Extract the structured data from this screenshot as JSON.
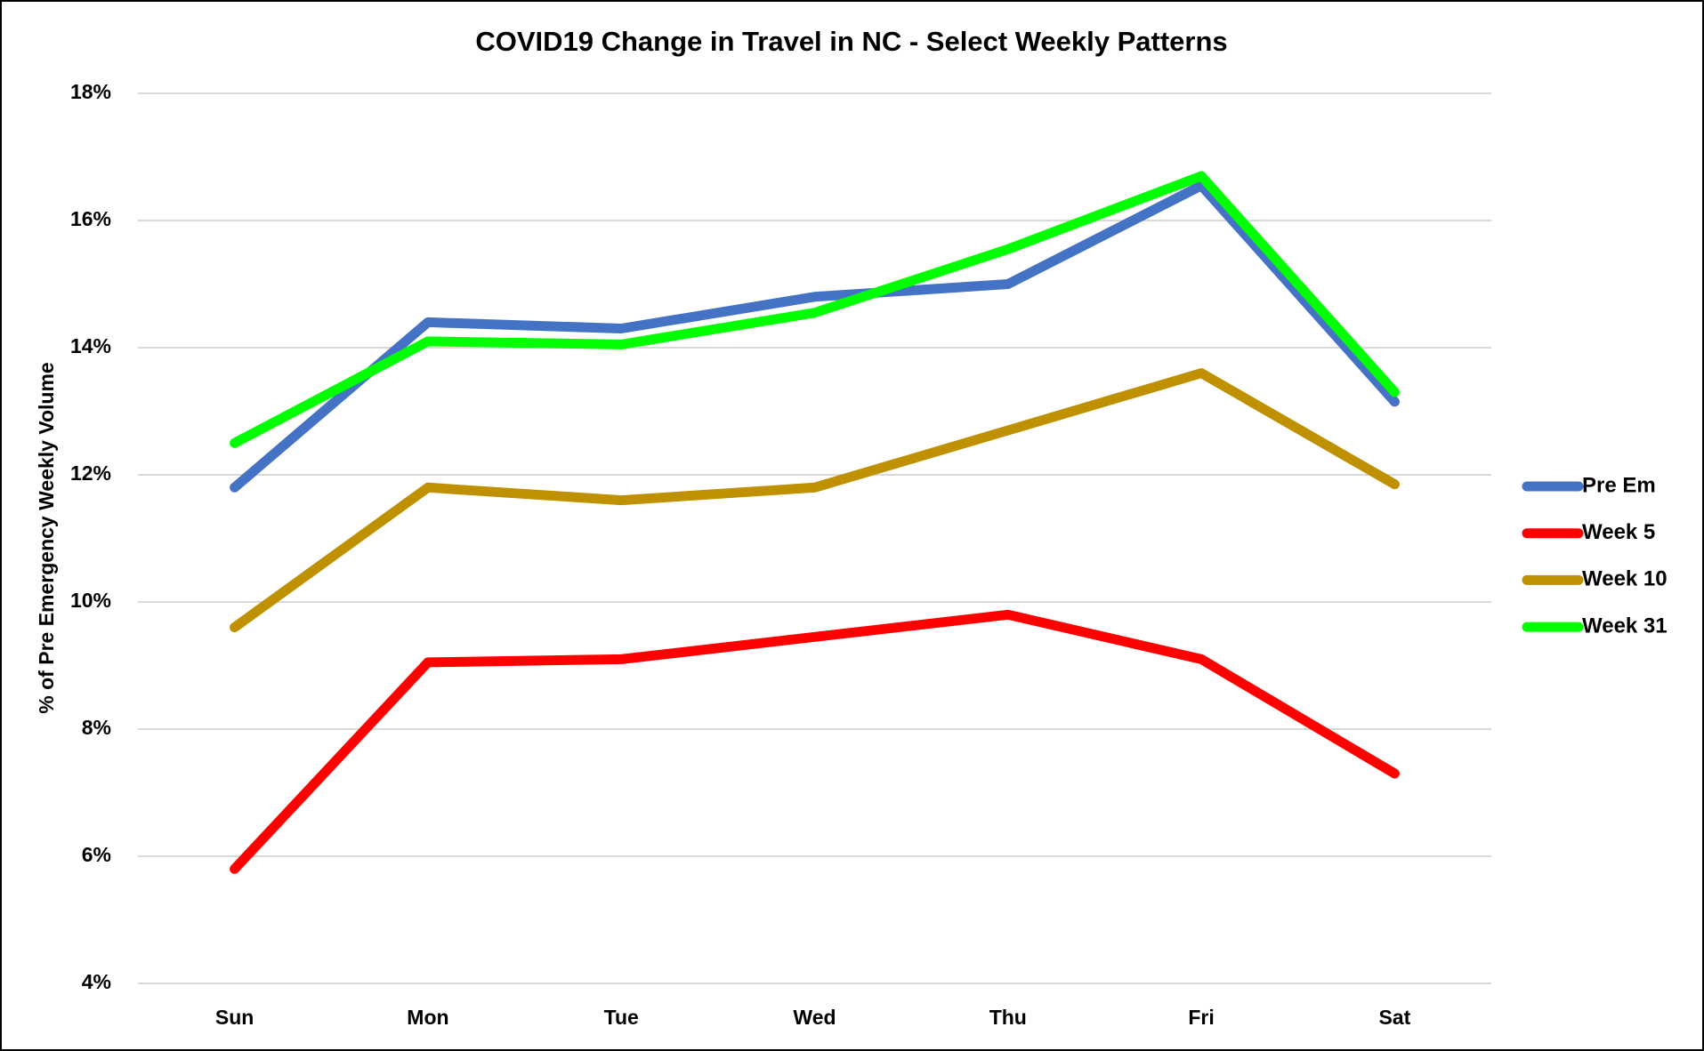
{
  "chart_data": {
    "type": "line",
    "title": "COVID19 Change in Travel in NC - Select Weekly Patterns",
    "y_label": "% of Pre Emergency Weekly Volume",
    "categories": [
      "Sun",
      "Mon",
      "Tue",
      "Wed",
      "Thu",
      "Fri",
      "Sat"
    ],
    "series": [
      {
        "name": "Pre Em",
        "color": "#4472c4",
        "values": [
          11.8,
          14.4,
          14.3,
          14.8,
          15.0,
          16.55,
          13.15
        ]
      },
      {
        "name": "Week 5",
        "color": "#ff0000",
        "values": [
          5.8,
          9.05,
          9.1,
          9.45,
          9.8,
          9.1,
          7.3
        ]
      },
      {
        "name": "Week 10",
        "color": "#bf9000",
        "values": [
          9.6,
          11.8,
          11.6,
          11.8,
          12.7,
          13.6,
          11.85
        ]
      },
      {
        "name": "Week 31",
        "color": "#00ff00",
        "values": [
          12.5,
          14.1,
          14.05,
          14.55,
          15.55,
          16.7,
          13.3
        ]
      }
    ],
    "ylim": [
      4,
      18
    ],
    "yticks": [
      {
        "value": 4,
        "label": "4%"
      },
      {
        "value": 6,
        "label": "6%"
      },
      {
        "value": 8,
        "label": "8%"
      },
      {
        "value": 10,
        "label": "10%"
      },
      {
        "value": 12,
        "label": "12%"
      },
      {
        "value": 14,
        "label": "14%"
      },
      {
        "value": 16,
        "label": "16%"
      },
      {
        "value": 18,
        "label": "18%"
      }
    ],
    "grid": true,
    "legend": "right"
  }
}
